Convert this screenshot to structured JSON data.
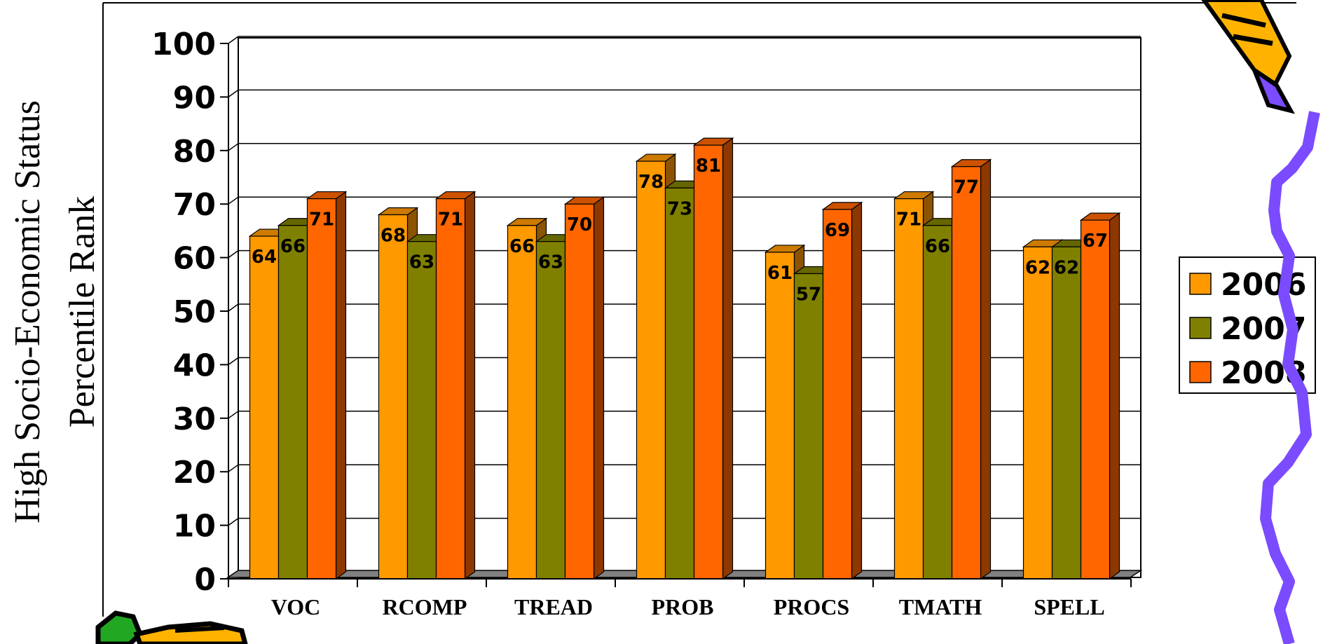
{
  "chart_data": {
    "type": "bar",
    "ylabel_lines": [
      "High Socio-Economic Status",
      "Percentile Rank"
    ],
    "ylim": [
      0,
      100
    ],
    "yticks": [
      "0",
      "10",
      "20",
      "30",
      "40",
      "50",
      "60",
      "70",
      "80",
      "90",
      "100"
    ],
    "categories": [
      "VOC",
      "RCOMP",
      "TREAD",
      "PROB",
      "PROCS",
      "TMATH",
      "SPELL"
    ],
    "series": [
      {
        "name": "2006",
        "color": "#FF9900",
        "values": [
          64,
          68,
          66,
          78,
          61,
          71,
          62
        ]
      },
      {
        "name": "2007",
        "color": "#808000",
        "values": [
          66,
          63,
          63,
          73,
          57,
          66,
          62
        ]
      },
      {
        "name": "2008",
        "color": "#FF6600",
        "values": [
          71,
          71,
          70,
          81,
          69,
          77,
          67
        ]
      }
    ],
    "grid": true,
    "legend_position": "right",
    "style": "3d-bar"
  },
  "decor": {
    "pencil_icon": "pencil-icon",
    "squiggle": "purple-squiggle"
  }
}
